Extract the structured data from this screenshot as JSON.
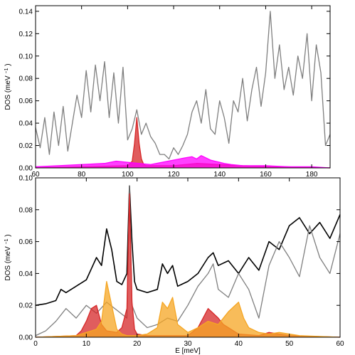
{
  "chart_data": [
    {
      "type": "line",
      "panel": "top",
      "title": "",
      "xlabel": "",
      "ylabel": "DOS (meV",
      "ylabel_superscript": "−1",
      "ylabel_suffix": ")",
      "xlim": [
        60,
        188
      ],
      "ylim": [
        0,
        0.145
      ],
      "x_ticks": [
        60,
        80,
        100,
        120,
        140,
        160,
        180
      ],
      "x_tick_labels": [
        "60",
        "80",
        "100",
        "120",
        "140",
        "160",
        "180"
      ],
      "y_ticks": [
        0,
        0.02,
        0.04,
        0.06,
        0.08,
        0.1,
        0.12,
        0.14
      ],
      "y_tick_labels": [
        "0.00",
        "0.02",
        "0.04",
        "0.06",
        "0.08",
        "0.10",
        "0.12",
        "0.14"
      ],
      "grid": false,
      "series": [
        {
          "color": "#7f7f7f",
          "fill": false,
          "x": [
            60,
            62,
            64,
            66,
            68,
            70,
            72,
            74,
            76,
            78,
            80,
            82,
            84,
            86,
            88,
            90,
            92,
            94,
            96,
            98,
            100,
            102,
            104,
            106,
            108,
            110,
            112,
            114,
            116,
            118,
            120,
            122,
            124,
            126,
            128,
            130,
            132,
            134,
            136,
            138,
            140,
            142,
            144,
            146,
            148,
            150,
            152,
            154,
            156,
            158,
            160,
            162,
            164,
            166,
            168,
            170,
            172,
            174,
            176,
            178,
            180,
            182,
            184,
            186,
            188
          ],
          "y": [
            0.036,
            0.018,
            0.045,
            0.012,
            0.05,
            0.02,
            0.055,
            0.015,
            0.04,
            0.065,
            0.045,
            0.087,
            0.05,
            0.092,
            0.06,
            0.095,
            0.045,
            0.085,
            0.04,
            0.09,
            0.025,
            0.035,
            0.052,
            0.03,
            0.04,
            0.028,
            0.022,
            0.012,
            0.012,
            0.008,
            0.018,
            0.012,
            0.02,
            0.03,
            0.05,
            0.06,
            0.04,
            0.07,
            0.035,
            0.03,
            0.06,
            0.045,
            0.022,
            0.06,
            0.05,
            0.08,
            0.042,
            0.07,
            0.09,
            0.055,
            0.085,
            0.14,
            0.08,
            0.11,
            0.07,
            0.09,
            0.065,
            0.1,
            0.08,
            0.12,
            0.06,
            0.11,
            0.085,
            0.02,
            0.03
          ]
        },
        {
          "color": "#d62728",
          "fill": true,
          "x": [
            60,
            100,
            102,
            103,
            104,
            105,
            106,
            107,
            108,
            120,
            130,
            140,
            150,
            188
          ],
          "y": [
            0,
            0.002,
            0.006,
            0.022,
            0.045,
            0.022,
            0.008,
            0.003,
            0.002,
            0.002,
            0.004,
            0.003,
            0.002,
            0
          ]
        },
        {
          "color": "#ff00ff",
          "fill": true,
          "x": [
            60,
            70,
            80,
            90,
            95,
            100,
            110,
            115,
            120,
            125,
            128,
            130,
            132,
            134,
            136,
            138,
            140,
            142,
            145,
            150,
            160,
            170,
            180,
            188
          ],
          "y": [
            0.001,
            0.002,
            0.003,
            0.004,
            0.006,
            0.005,
            0.003,
            0.005,
            0.007,
            0.009,
            0.01,
            0.008,
            0.011,
            0.009,
            0.007,
            0.006,
            0.005,
            0.004,
            0.003,
            0.002,
            0.002,
            0.001,
            0.001,
            0
          ]
        }
      ]
    },
    {
      "type": "line",
      "panel": "bottom",
      "title": "",
      "xlabel": "E [meV]",
      "ylabel": "DOS (meV",
      "ylabel_superscript": "−1",
      "ylabel_suffix": ")",
      "xlim": [
        0,
        60
      ],
      "ylim": [
        0,
        0.1
      ],
      "x_ticks": [
        0,
        10,
        20,
        30,
        40,
        50,
        60
      ],
      "x_tick_labels": [
        "0",
        "10",
        "20",
        "30",
        "40",
        "50",
        "60"
      ],
      "y_ticks": [
        0,
        0.02,
        0.04,
        0.06,
        0.08,
        0.1
      ],
      "y_tick_labels": [
        "0.00",
        "0.02",
        "0.04",
        "0.06",
        "0.08",
        "0.10"
      ],
      "grid": false,
      "series": [
        {
          "color": "#000000",
          "fill": false,
          "x": [
            0,
            2,
            4,
            5,
            6,
            8,
            10,
            12,
            13,
            14,
            15,
            16,
            17,
            18,
            18.5,
            19,
            19.5,
            20,
            22,
            24,
            25,
            26,
            27,
            28,
            30,
            32,
            34,
            35,
            36,
            38,
            40,
            42,
            44,
            46,
            48,
            50,
            52,
            54,
            56,
            58,
            60
          ],
          "y": [
            0.02,
            0.021,
            0.023,
            0.03,
            0.028,
            0.032,
            0.036,
            0.05,
            0.045,
            0.068,
            0.055,
            0.035,
            0.033,
            0.04,
            0.095,
            0.06,
            0.035,
            0.03,
            0.028,
            0.03,
            0.046,
            0.04,
            0.045,
            0.032,
            0.035,
            0.04,
            0.05,
            0.053,
            0.045,
            0.048,
            0.04,
            0.05,
            0.042,
            0.06,
            0.055,
            0.07,
            0.075,
            0.065,
            0.072,
            0.062,
            0.077
          ]
        },
        {
          "color": "#7f7f7f",
          "fill": false,
          "x": [
            0,
            2,
            4,
            6,
            8,
            10,
            12,
            14,
            16,
            18,
            18.5,
            19,
            20,
            22,
            24,
            26,
            28,
            30,
            32,
            34,
            35,
            36,
            38,
            40,
            42,
            44,
            46,
            48,
            50,
            52,
            54,
            56,
            58,
            60
          ],
          "y": [
            0.001,
            0.004,
            0.01,
            0.018,
            0.012,
            0.02,
            0.015,
            0.022,
            0.017,
            0.012,
            0.095,
            0.02,
            0.012,
            0.006,
            0.008,
            0.012,
            0.01,
            0.02,
            0.032,
            0.04,
            0.046,
            0.03,
            0.025,
            0.04,
            0.03,
            0.012,
            0.045,
            0.06,
            0.05,
            0.038,
            0.07,
            0.05,
            0.04,
            0.065
          ]
        },
        {
          "color": "#d62728",
          "fill": true,
          "x": [
            0,
            8,
            9,
            10,
            11,
            12,
            13,
            14,
            16,
            17,
            18,
            18.5,
            19,
            19.5,
            20,
            22,
            30,
            32,
            33,
            34,
            35,
            36,
            37,
            38,
            40,
            44,
            46,
            50,
            60
          ],
          "y": [
            0,
            0.001,
            0.004,
            0.01,
            0.018,
            0.02,
            0.008,
            0.004,
            0.003,
            0.006,
            0.018,
            0.09,
            0.022,
            0.005,
            0.002,
            0.001,
            0.001,
            0.006,
            0.012,
            0.018,
            0.015,
            0.012,
            0.008,
            0.006,
            0.002,
            0.001,
            0.003,
            0.001,
            0
          ]
        },
        {
          "color": "#f5a623",
          "fill": true,
          "x": [
            0,
            8,
            10,
            12,
            13,
            14,
            15,
            16,
            17,
            18,
            20,
            22,
            24,
            25,
            26,
            27,
            28,
            30,
            32,
            34,
            36,
            38,
            40,
            41,
            42,
            44,
            46,
            48,
            50,
            52,
            60
          ],
          "y": [
            0,
            0.001,
            0.003,
            0.005,
            0.01,
            0.035,
            0.02,
            0.005,
            0.002,
            0.001,
            0.001,
            0.002,
            0.006,
            0.022,
            0.018,
            0.025,
            0.008,
            0.003,
            0.006,
            0.01,
            0.008,
            0.016,
            0.022,
            0.012,
            0.006,
            0.003,
            0.002,
            0.003,
            0.002,
            0.001,
            0
          ]
        }
      ]
    }
  ]
}
